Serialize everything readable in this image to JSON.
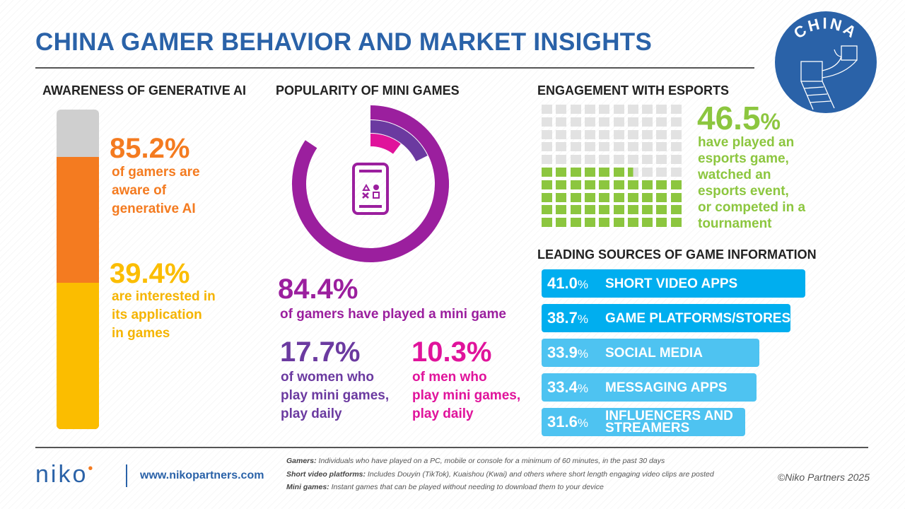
{
  "title": "CHINA GAMER BEHAVIOR AND MARKET INSIGHTS",
  "badge": {
    "text": "CHINA",
    "color": "#2a62a8"
  },
  "ai": {
    "heading": "AWARENESS OF GENERATIVE AI",
    "aware_value": "85.2%",
    "aware_text": [
      "of gamers are",
      "aware of",
      "generative AI"
    ],
    "interest_value": "39.4%",
    "interest_text": [
      "are interested in",
      "its application",
      "in games"
    ]
  },
  "mini": {
    "heading": "POPULARITY OF MINI GAMES",
    "value": "84.4%",
    "text": "of gamers have played a mini game",
    "women_value": "17.7%",
    "women_text": [
      "of women who",
      "play mini games,",
      "play daily"
    ],
    "men_value": "10.3%",
    "men_text": [
      "of men who",
      "play mini games,",
      "play daily"
    ]
  },
  "esports": {
    "heading": "ENGAGEMENT WITH ESPORTS",
    "value": "46.5",
    "pct": "%",
    "text": [
      "have played an",
      "esports game,",
      "watched an",
      "esports event,",
      "or competed in a",
      "tournament"
    ]
  },
  "sources": {
    "heading": "LEADING SOURCES OF GAME INFORMATION",
    "items": [
      {
        "value": "41.0",
        "label": [
          "SHORT VIDEO APPS"
        ]
      },
      {
        "value": "38.7",
        "label": [
          "GAME PLATFORMS/STORES"
        ]
      },
      {
        "value": "33.9",
        "label": [
          "SOCIAL MEDIA"
        ]
      },
      {
        "value": "33.4",
        "label": [
          "MESSAGING APPS"
        ]
      },
      {
        "value": "31.6",
        "label": [
          "INFLUENCERS AND",
          "STREAMERS"
        ]
      }
    ],
    "pct": "%"
  },
  "footer": {
    "logo": "niko",
    "url": "www.nikopartners.com",
    "notes": [
      {
        "term": "Gamers:",
        "text": " Individuals who have played on a PC, mobile or console for a minimum of 60 minutes, in the past 30 days"
      },
      {
        "term": "Short video platforms:",
        "text": " Includes Douyin (TikTok), Kuaishou (Kwai) and others where short length engaging video clips are posted"
      },
      {
        "term": "Mini games:",
        "text": " Instant games that can be played without needing to download them to your device"
      }
    ],
    "copyright": "©Niko Partners 2025"
  },
  "chart_data": [
    {
      "type": "bar",
      "title": "AWARENESS OF GENERATIVE AI",
      "categories": [
        "Aware of generative AI",
        "Interested in its application in games"
      ],
      "values": [
        85.2,
        39.4
      ],
      "ylim": [
        0,
        100
      ]
    },
    {
      "type": "pie",
      "title": "POPULARITY OF MINI GAMES",
      "categories": [
        "Played a mini game",
        "Women who play daily",
        "Men who play daily"
      ],
      "values": [
        84.4,
        17.7,
        10.3
      ]
    },
    {
      "type": "waffle",
      "title": "ENGAGEMENT WITH ESPORTS",
      "values": [
        46.5
      ],
      "grid": [
        10,
        10
      ]
    },
    {
      "type": "bar",
      "orientation": "horizontal",
      "title": "LEADING SOURCES OF GAME INFORMATION",
      "categories": [
        "SHORT VIDEO APPS",
        "GAME PLATFORMS/STORES",
        "SOCIAL MEDIA",
        "MESSAGING APPS",
        "INFLUENCERS AND STREAMERS"
      ],
      "values": [
        41.0,
        38.7,
        33.9,
        33.4,
        31.6
      ]
    }
  ],
  "colors": {
    "orange": "#f47b20",
    "yellow": "#fbbd00",
    "purple": "#9b1f9e",
    "violet": "#6b3aa0",
    "magenta": "#e0139b",
    "green": "#8cc63f",
    "blue": "#00aeef",
    "lightblue": "#4ec3f1"
  }
}
